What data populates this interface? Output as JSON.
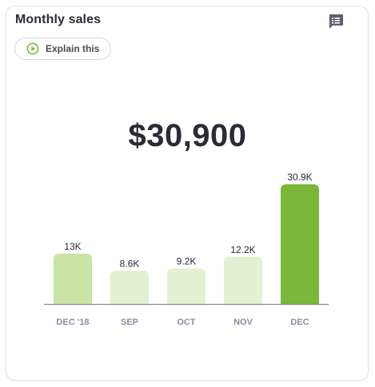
{
  "card": {
    "title": "Monthly sales",
    "explain_label": "Explain this",
    "big_value": "$30,900"
  },
  "icons": {
    "feedback": "comment-lines-icon",
    "explain": "play-circle-icon"
  },
  "colors": {
    "accent_green": "#7bb83a",
    "bar_light": "#c9e3a4",
    "bar_pale": "#e3f0d2",
    "axis": "#8a8c99"
  },
  "chart_data": {
    "type": "bar",
    "categories": [
      "DEC '18",
      "SEP",
      "OCT",
      "NOV",
      "DEC"
    ],
    "values": [
      13000,
      8600,
      9200,
      12200,
      30900
    ],
    "data_labels": [
      "13K",
      "8.6K",
      "9.2K",
      "12.2K",
      "30.9K"
    ],
    "bar_colors": [
      "#c9e3a4",
      "#e3f0d2",
      "#e3f0d2",
      "#e3f0d2",
      "#7bb83a"
    ],
    "title": "",
    "xlabel": "",
    "ylabel": "",
    "ylim": [
      0,
      30900
    ],
    "grid": false,
    "legend": "none"
  }
}
